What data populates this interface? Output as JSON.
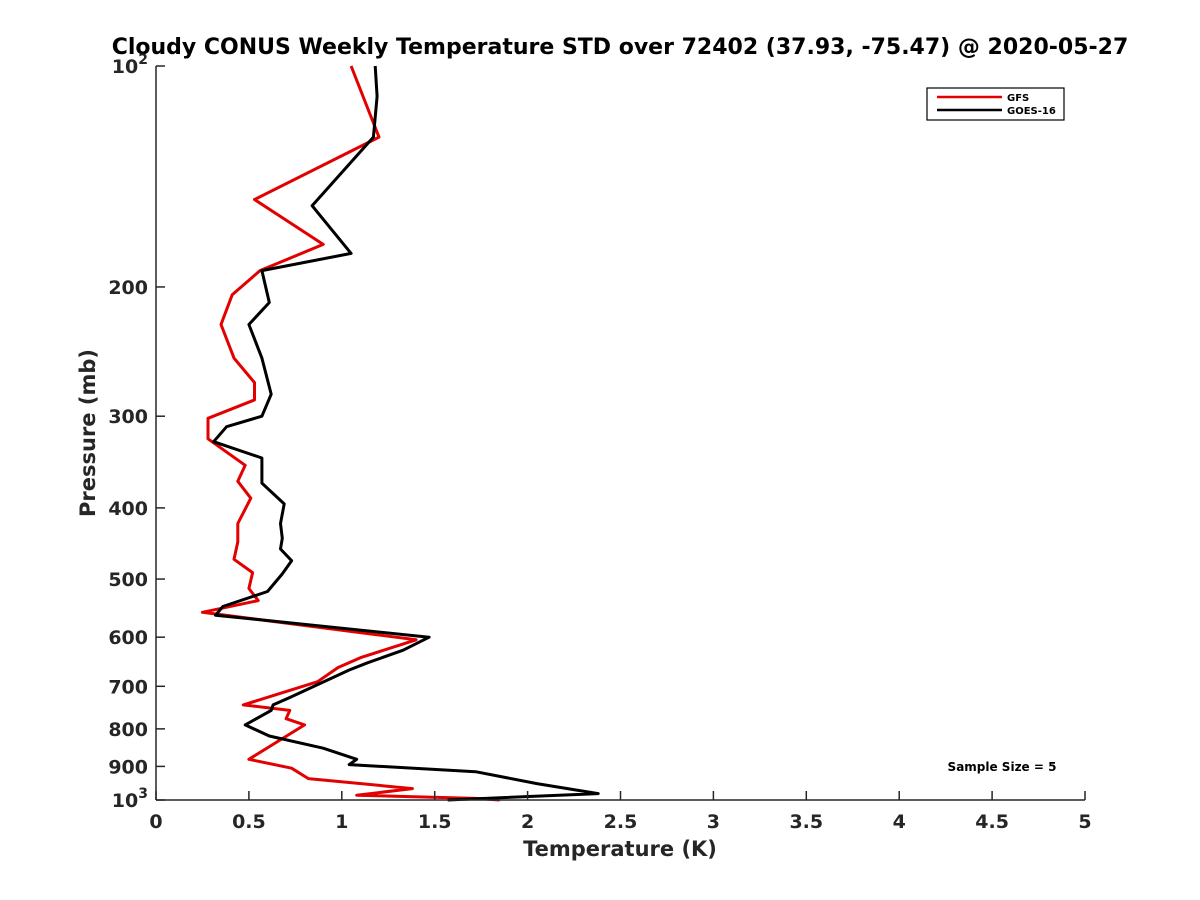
{
  "chart_data": {
    "type": "line",
    "title": "Cloudy CONUS Weekly Temperature STD over 72402 (37.93, -75.47) @ 2020-05-27",
    "xlabel": "Temperature (K)",
    "ylabel": "Pressure (mb)",
    "xlim": [
      0,
      5
    ],
    "ylim": [
      100,
      1000
    ],
    "y_scale": "log",
    "y_reversed": true,
    "x_ticks": [
      "0",
      "0.5",
      "1",
      "1.5",
      "2",
      "2.5",
      "3",
      "3.5",
      "4",
      "4.5",
      "5"
    ],
    "y_ticks": [
      {
        "value": 100,
        "base": "10",
        "exp": "2"
      },
      {
        "value": 200,
        "label": "200"
      },
      {
        "value": 300,
        "label": "300"
      },
      {
        "value": 400,
        "label": "400"
      },
      {
        "value": 500,
        "label": "500"
      },
      {
        "value": 600,
        "label": "600"
      },
      {
        "value": 700,
        "label": "700"
      },
      {
        "value": 800,
        "label": "800"
      },
      {
        "value": 900,
        "label": "900"
      },
      {
        "value": 1000,
        "base": "10",
        "exp": "3"
      }
    ],
    "grid": false,
    "legend_position": "top-right",
    "annotation": "Sample Size = 5",
    "series": [
      {
        "name": "GFS",
        "color": "#e30000",
        "x": [
          1.05,
          1.2,
          0.53,
          0.9,
          0.56,
          0.41,
          0.35,
          0.42,
          0.53,
          0.53,
          0.28,
          0.28,
          0.48,
          0.44,
          0.51,
          0.44,
          0.44,
          0.42,
          0.52,
          0.5,
          0.55,
          0.25,
          1.4,
          1.1,
          0.98,
          0.87,
          0.47,
          0.72,
          0.7,
          0.8,
          0.5,
          0.73,
          0.82,
          1.38,
          1.08,
          1.72,
          1.85
        ],
        "y": [
          100,
          125,
          152,
          175,
          190,
          205,
          225,
          250,
          270,
          285,
          302,
          322,
          350,
          368,
          388,
          420,
          445,
          470,
          490,
          515,
          535,
          555,
          605,
          640,
          660,
          690,
          742,
          755,
          775,
          790,
          880,
          905,
          935,
          965,
          985,
          995,
          1000
        ]
      },
      {
        "name": "GOES-16",
        "color": "#000000",
        "x": [
          1.18,
          1.19,
          1.17,
          0.84,
          1.05,
          0.57,
          0.61,
          0.5,
          0.57,
          0.62,
          0.57,
          0.38,
          0.31,
          0.57,
          0.57,
          0.69,
          0.67,
          0.68,
          0.67,
          0.73,
          0.68,
          0.6,
          0.36,
          0.32,
          1.47,
          1.33,
          1.14,
          1.04,
          0.72,
          0.63,
          0.62,
          0.48,
          0.61,
          0.9,
          1.08,
          1.04,
          1.72,
          2.05,
          2.38,
          1.57
        ],
        "y": [
          100,
          110,
          125,
          155,
          180,
          190,
          210,
          225,
          250,
          280,
          300,
          310,
          325,
          342,
          370,
          395,
          420,
          440,
          455,
          472,
          492,
          520,
          545,
          560,
          600,
          625,
          650,
          665,
          725,
          742,
          755,
          790,
          818,
          850,
          880,
          895,
          915,
          950,
          980,
          1000
        ]
      }
    ]
  }
}
